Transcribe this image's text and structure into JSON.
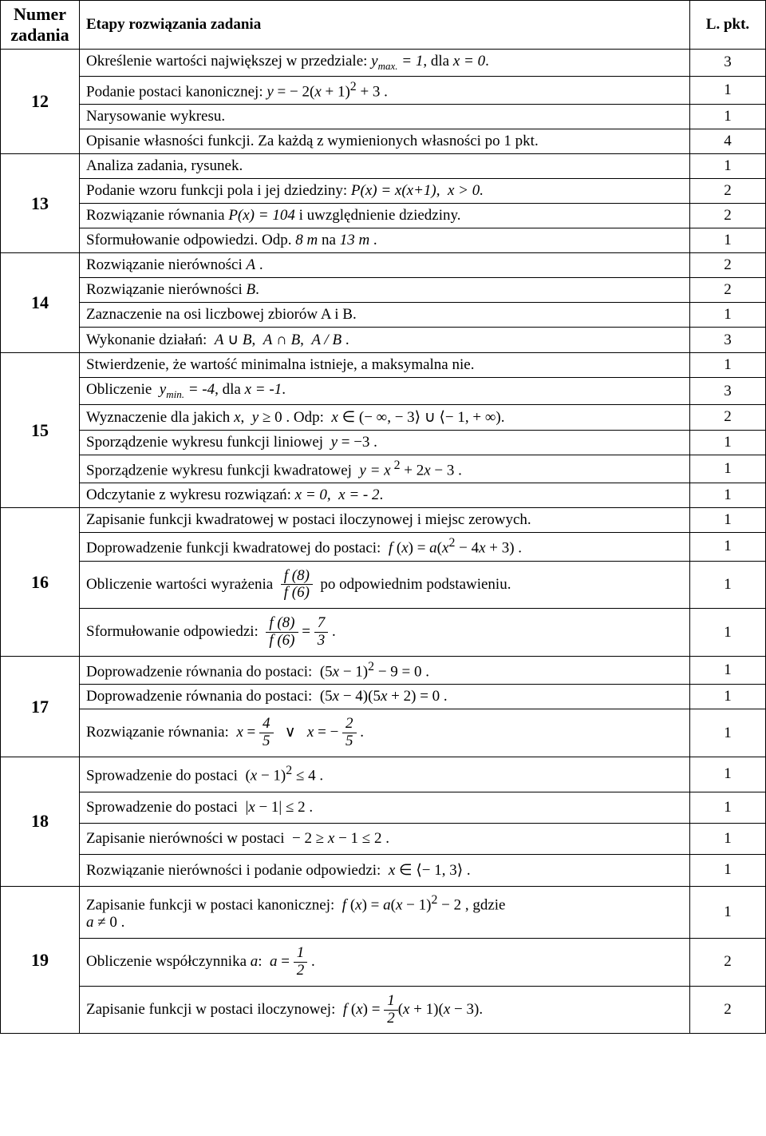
{
  "columns": {
    "num": "Numer zadania",
    "desc": "Etapy rozwiązania zadania",
    "pts": "L. pkt."
  },
  "tasks": [
    {
      "num": "12",
      "steps": [
        {
          "html": "Określenie wartości największej w przedziale:  <span class='ital'>y<span class='sub'>max.</span> = 1</span>, dla <span class='ital'>x = 0</span>.",
          "pts": "3"
        },
        {
          "html": "Podanie postaci kanonicznej:   <span class='ital'>y</span> = − 2(<span class='ital'>x</span> + 1)<sup>2</sup> + 3 .",
          "pts": "1"
        },
        {
          "html": "Narysowanie wykresu.",
          "pts": "1"
        },
        {
          "html": "Opisanie własności funkcji. Za każdą z wymienionych własności po 1 pkt.",
          "pts": "4"
        }
      ]
    },
    {
      "num": "13",
      "steps": [
        {
          "html": "Analiza zadania, rysunek.",
          "pts": "1"
        },
        {
          "html": "Podanie wzoru funkcji pola i jej dziedziny: <span class='ital'>P(x) = x(x+1),&nbsp;&nbsp;x &gt; 0.</span>",
          "pts": "2"
        },
        {
          "html": "Rozwiązanie równania <span class='ital'>P(x) = 104</span> i uwzględnienie dziedziny.",
          "pts": "2"
        },
        {
          "html": "Sformułowanie odpowiedzi. Odp. <span class='ital'>8 m</span> na <span class='ital'>13 m</span> .",
          "pts": "1"
        }
      ]
    },
    {
      "num": "14",
      "steps": [
        {
          "html": "Rozwiązanie nierówności <span class='ital'>A</span> .",
          "pts": "2"
        },
        {
          "html": "Rozwiązanie nierówności <span class='ital'>B</span>.",
          "pts": "2"
        },
        {
          "html": "Zaznaczenie na osi liczbowej zbiorów A i B.",
          "pts": "1"
        },
        {
          "html": "Wykonanie działań:&nbsp; <span class='ital'>A</span> ∪ <span class='ital'>B</span>,&nbsp; <span class='ital'>A</span> ∩ <span class='ital'>B</span>,&nbsp; <span class='ital'>A / B</span> .",
          "pts": "3"
        }
      ]
    },
    {
      "num": "15",
      "steps": [
        {
          "html": "Stwierdzenie, że wartość minimalna istnieje, a maksymalna nie.",
          "pts": "1"
        },
        {
          "html": "Obliczenie&nbsp; <span class='ital'>y<span class='sub'>min.</span> = -4</span>, dla <span class='ital'>x = -1</span>.",
          "pts": "3"
        },
        {
          "html": "Wyznaczenie dla jakich <span class='ital'>x</span>,&nbsp; <span class='ital'>y</span> ≥ 0 . Odp:&nbsp; <span class='ital'>x</span> ∈ (− ∞, − 3⟩ ∪ ⟨− 1, + ∞).",
          "pts": "2"
        },
        {
          "html": "Sporządzenie wykresu funkcji liniowej&nbsp; <span class='ital'>y</span> = −3 .",
          "pts": "1"
        },
        {
          "html": "Sporządzenie wykresu funkcji kwadratowej&nbsp; <span class='ital'>y = x</span><sup>&nbsp;2</sup> + 2<span class='ital'>x</span> − 3 .",
          "pts": "1"
        },
        {
          "html": "Odczytanie z wykresu rozwiązań: <span class='ital'>x = 0,&nbsp;&nbsp;x = - 2</span>.",
          "pts": "1"
        }
      ]
    },
    {
      "num": "16",
      "steps": [
        {
          "html": "Zapisanie funkcji kwadratowej w postaci iloczynowej i miejsc zerowych.",
          "pts": "1"
        },
        {
          "html": "Doprowadzenie funkcji kwadratowej do postaci:&nbsp; <span class='ital'>f</span> (<span class='ital'>x</span>) = <span class='ital'>a</span>(<span class='ital'>x</span><sup>2</sup> − 4<span class='ital'>x</span> + 3) .",
          "pts": "1"
        },
        {
          "html": "Obliczenie wartości wyrażenia&nbsp; <span class='frac'><span class='n'>f (8)</span><span class='d'>f (6)</span></span>&nbsp; po odpowiednim podstawieniu.",
          "pts": "1",
          "tall": true
        },
        {
          "html": "Sformułowanie odpowiedzi:&nbsp; <span class='frac'><span class='n'>f (8)</span><span class='d'>f (6)</span></span> = <span class='frac'><span class='n'>7</span><span class='d'>3</span></span> .",
          "pts": "1",
          "tall": true
        }
      ]
    },
    {
      "num": "17",
      "steps": [
        {
          "html": "Doprowadzenie równania do postaci:&nbsp; (5<span class='ital'>x</span> − 1)<sup>2</sup> − 9 = 0 .",
          "pts": "1"
        },
        {
          "html": "Doprowadzenie równania do postaci:&nbsp; (5<span class='ital'>x</span> − 4)(5<span class='ital'>x</span> + 2) = 0 .",
          "pts": "1"
        },
        {
          "html": "Rozwiązanie równania:&nbsp; <span class='ital'>x</span> = <span class='frac'><span class='n'>4</span><span class='d'>5</span></span>&nbsp;&nbsp;&nbsp;∨&nbsp;&nbsp;&nbsp;<span class='ital'>x</span> = − <span class='frac'><span class='n'>2</span><span class='d'>5</span></span> .",
          "pts": "1",
          "tall": true
        }
      ]
    },
    {
      "num": "18",
      "steps": [
        {
          "html": "Sprowadzenie do postaci&nbsp; (<span class='ital'>x</span> − 1)<sup>2</sup> ≤ 4 .",
          "pts": "1",
          "tall": true
        },
        {
          "html": "Sprowadzenie do postaci&nbsp; |<span class='ital'>x</span> − 1| ≤ 2 .",
          "pts": "1",
          "tall": true
        },
        {
          "html": "Zapisanie nierówności w postaci&nbsp; − 2 ≥ <span class='ital'>x</span> − 1 ≤ 2 .",
          "pts": "1",
          "tall": true
        },
        {
          "html": "Rozwiązanie nierówności i podanie odpowiedzi:&nbsp; <span class='ital'>x</span> ∈ ⟨− 1, 3⟩ .",
          "pts": "1",
          "tall": true
        }
      ]
    },
    {
      "num": "19",
      "steps": [
        {
          "html": "Zapisanie funkcji w postaci kanonicznej:&nbsp; <span class='ital'>f</span> (<span class='ital'>x</span>) = <span class='ital'>a</span>(<span class='ital'>x</span> − 1)<sup>2</sup> − 2 , gdzie<br><span class='ital'>a</span> ≠ 0 .",
          "pts": "1",
          "tall": true
        },
        {
          "html": "Obliczenie współczynnika <span class='ital'>a</span>:&nbsp; <span class='ital'>a</span> = <span class='frac'><span class='n'>1</span><span class='d'>2</span></span> .",
          "pts": "2",
          "tall": true
        },
        {
          "html": "Zapisanie funkcji w postaci iloczynowej:&nbsp; <span class='ital'>f</span> (<span class='ital'>x</span>) = <span class='frac'><span class='n'>1</span><span class='d'>2</span></span>(<span class='ital'>x</span> + 1)(<span class='ital'>x</span> − 3).",
          "pts": "2",
          "tall": true
        }
      ]
    }
  ]
}
